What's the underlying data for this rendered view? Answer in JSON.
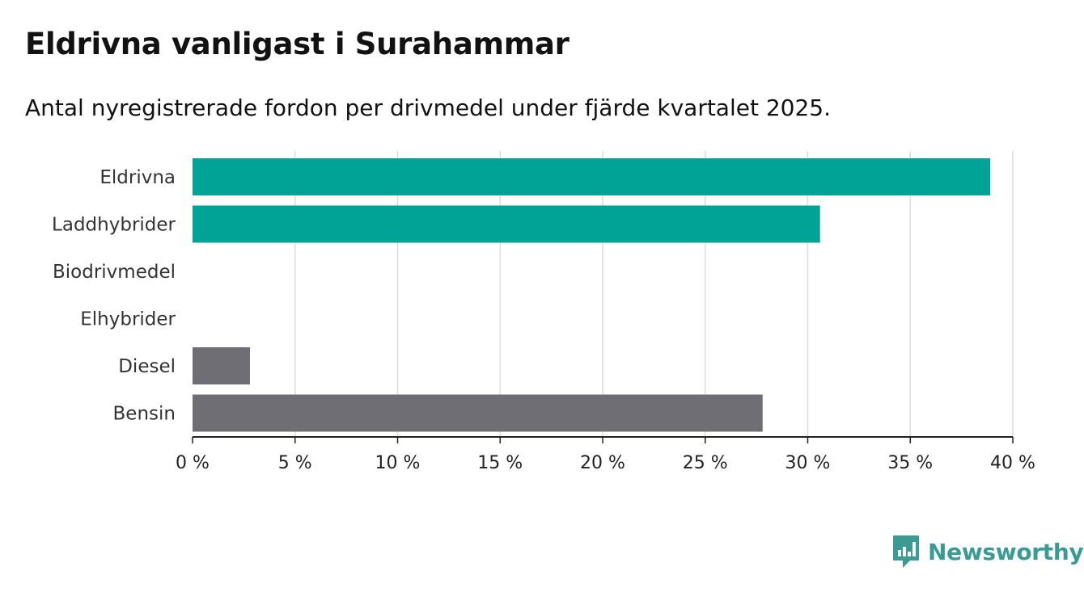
{
  "header": {
    "title": "Eldrivna vanligast i Surahammar",
    "subtitle": "Antal nyregistrerade fordon per drivmedel under fjärde kvartalet 2025."
  },
  "brand": {
    "name": "Newsworthy",
    "logo_icon": "newsworthy-logo-icon",
    "color": "#3a9b95"
  },
  "chart_data": {
    "type": "bar",
    "orientation": "horizontal",
    "title": "Eldrivna vanligast i Surahammar",
    "subtitle": "Antal nyregistrerade fordon per drivmedel under fjärde kvartalet 2025.",
    "categories": [
      "Eldrivna",
      "Laddhybrider",
      "Biodrivmedel",
      "Elhybrider",
      "Diesel",
      "Bensin"
    ],
    "values": [
      38.9,
      30.6,
      0,
      0,
      2.8,
      27.8
    ],
    "unit": "%",
    "bar_colors": [
      "#00a396",
      "#00a396",
      "#00a396",
      "#00a396",
      "#6f6e74",
      "#6f6e74"
    ],
    "xlim": [
      0,
      40
    ],
    "xticks": [
      0,
      5,
      10,
      15,
      20,
      25,
      30,
      35,
      40
    ],
    "xtick_labels": [
      "0 %",
      "5 %",
      "10 %",
      "15 %",
      "20 %",
      "25 %",
      "30 %",
      "35 %",
      "40 %"
    ],
    "xlabel": "",
    "ylabel": "",
    "grid": true,
    "colors": {
      "grid": "#dcdcdc",
      "axis": "#222222"
    }
  }
}
